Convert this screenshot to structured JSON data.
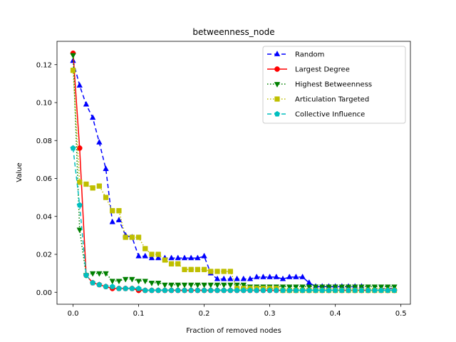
{
  "chart_data": {
    "type": "line",
    "title": "betweenness_node",
    "xlabel": "Fraction of removed nodes",
    "ylabel": "Value",
    "xlim": [
      -0.0245,
      0.5145
    ],
    "ylim": [
      -0.0063,
      0.1323
    ],
    "xticks": [
      0.0,
      0.1,
      0.2,
      0.3,
      0.4,
      0.5
    ],
    "xtick_labels": [
      "0.0",
      "0.1",
      "0.2",
      "0.3",
      "0.4",
      "0.5"
    ],
    "yticks": [
      0.0,
      0.02,
      0.04,
      0.06,
      0.08,
      0.1,
      0.12
    ],
    "ytick_labels": [
      "0.00",
      "0.02",
      "0.04",
      "0.06",
      "0.08",
      "0.10",
      "0.12"
    ],
    "grid": false,
    "legend_position": "upper right",
    "x": [
      0.0,
      0.01,
      0.02,
      0.03,
      0.04,
      0.05,
      0.06,
      0.07,
      0.08,
      0.09,
      0.1,
      0.11,
      0.12,
      0.13,
      0.14,
      0.15,
      0.16,
      0.17,
      0.18,
      0.19,
      0.2,
      0.21,
      0.22,
      0.23,
      0.24,
      0.25,
      0.26,
      0.27,
      0.28,
      0.29,
      0.3,
      0.31,
      0.32,
      0.33,
      0.34,
      0.35,
      0.36,
      0.37,
      0.38,
      0.39,
      0.4,
      0.41,
      0.42,
      0.43,
      0.44,
      0.45,
      0.46,
      0.47,
      0.48,
      0.49
    ],
    "series": [
      {
        "name": "Random",
        "color": "#0000ff",
        "dash": "6,4",
        "marker": "triangle-up",
        "values": [
          0.122,
          0.109,
          0.099,
          0.092,
          0.079,
          0.065,
          0.037,
          0.038,
          0.03,
          0.029,
          0.019,
          0.019,
          0.018,
          0.018,
          0.018,
          0.018,
          0.018,
          0.018,
          0.018,
          0.018,
          0.019,
          0.01,
          0.007,
          0.007,
          0.007,
          0.007,
          0.007,
          0.007,
          0.008,
          0.008,
          0.008,
          0.008,
          0.007,
          0.008,
          0.008,
          0.008,
          0.005,
          0.003,
          0.003,
          0.003,
          0.003,
          0.003,
          0.003,
          0.003,
          0.003,
          0.002,
          0.002,
          0.002,
          0.002,
          0.002
        ]
      },
      {
        "name": "Largest Degree",
        "color": "#ff0000",
        "dash": "",
        "marker": "circle",
        "values": [
          0.126,
          0.076,
          0.009,
          0.005,
          0.004,
          0.003,
          0.002,
          0.002,
          0.002,
          0.002,
          0.001,
          0.001,
          0.001,
          0.001,
          0.001,
          0.001,
          0.001,
          0.001,
          0.001,
          0.001,
          0.001,
          0.001,
          0.001,
          0.001,
          0.001,
          0.001,
          0.001,
          0.001,
          0.001,
          0.001,
          0.001,
          0.001,
          0.001,
          0.001,
          0.001,
          0.001,
          0.001,
          0.001,
          0.001,
          0.001,
          0.001,
          0.001,
          0.001,
          0.001,
          0.001,
          0.001,
          0.001,
          0.001,
          0.001,
          0.001
        ]
      },
      {
        "name": "Highest Betweenness",
        "color": "#008000",
        "dash": "1.5,2.5",
        "marker": "triangle-down",
        "values": [
          0.125,
          0.033,
          0.009,
          0.01,
          0.01,
          0.01,
          0.006,
          0.006,
          0.007,
          0.007,
          0.006,
          0.006,
          0.005,
          0.005,
          0.004,
          0.004,
          0.004,
          0.004,
          0.004,
          0.004,
          0.004,
          0.004,
          0.004,
          0.004,
          0.004,
          0.004,
          0.004,
          0.003,
          0.003,
          0.003,
          0.003,
          0.003,
          0.003,
          0.003,
          0.003,
          0.003,
          0.003,
          0.003,
          0.003,
          0.003,
          0.003,
          0.003,
          0.003,
          0.003,
          0.003,
          0.003,
          0.003,
          0.003,
          0.003,
          0.003
        ]
      },
      {
        "name": "Articulation Targeted",
        "color": "#bfbf00",
        "dash": "1.5,2.5",
        "marker": "square",
        "values": [
          0.117,
          0.058,
          0.057,
          0.055,
          0.056,
          0.05,
          0.043,
          0.043,
          0.029,
          0.029,
          0.029,
          0.023,
          0.02,
          0.02,
          0.017,
          0.015,
          0.015,
          0.012,
          0.012,
          0.012,
          0.012,
          0.011,
          0.011,
          0.011,
          0.011,
          0.002,
          0.002,
          0.002,
          0.002,
          0.002,
          0.002,
          0.002,
          0.001,
          0.001,
          0.001,
          0.001,
          0.001,
          0.001,
          0.001,
          0.001,
          0.001,
          0.001,
          0.001,
          0.001,
          0.001,
          0.001,
          0.001,
          0.001,
          0.001,
          0.001
        ]
      },
      {
        "name": "Collective Influence",
        "color": "#00bfbf",
        "dash": "6,4",
        "marker": "pentagon",
        "values": [
          0.076,
          0.046,
          0.009,
          0.005,
          0.004,
          0.003,
          0.003,
          0.002,
          0.002,
          0.002,
          0.002,
          0.001,
          0.001,
          0.001,
          0.001,
          0.001,
          0.001,
          0.001,
          0.001,
          0.001,
          0.001,
          0.001,
          0.001,
          0.001,
          0.001,
          0.001,
          0.001,
          0.001,
          0.001,
          0.001,
          0.001,
          0.001,
          0.001,
          0.001,
          0.001,
          0.001,
          0.001,
          0.001,
          0.001,
          0.001,
          0.001,
          0.001,
          0.001,
          0.001,
          0.001,
          0.001,
          0.001,
          0.001,
          0.001,
          0.001
        ]
      }
    ]
  }
}
